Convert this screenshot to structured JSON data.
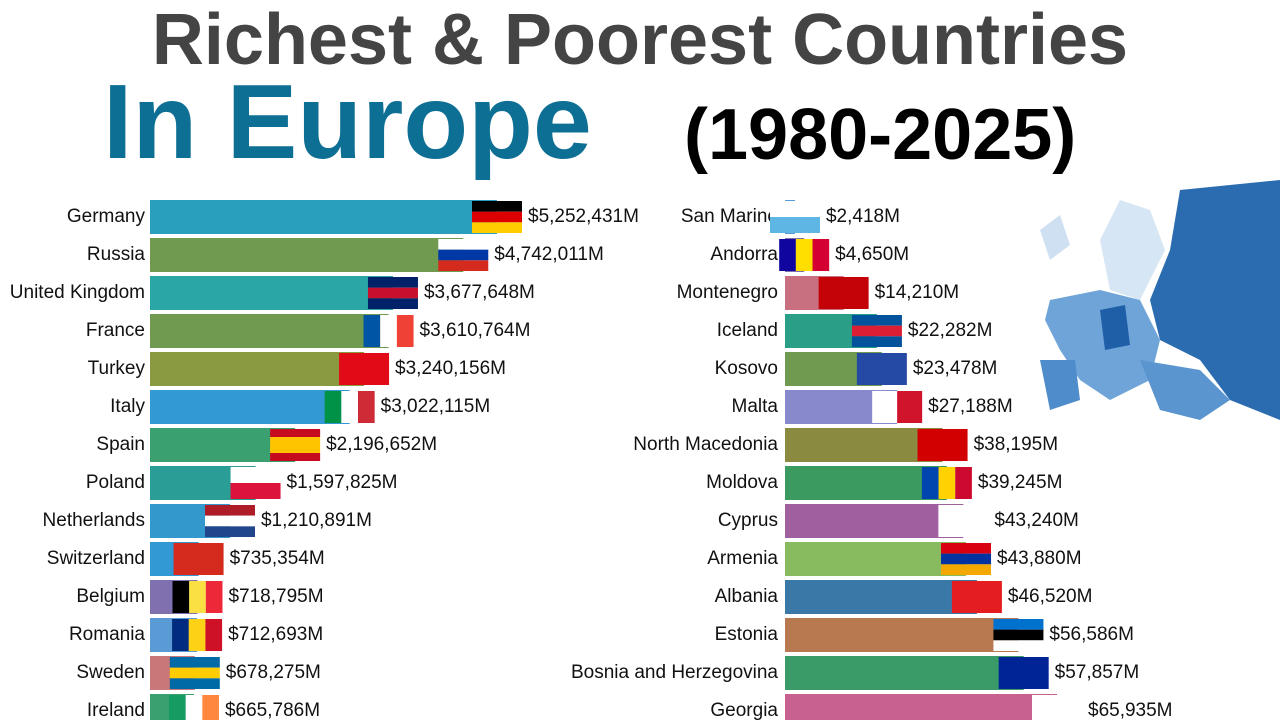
{
  "header": {
    "title": "Richest & Poorest Countries",
    "subtitle": "In Europe",
    "period": "(1980-2025)"
  },
  "chart_data": [
    {
      "type": "bar",
      "categories": [
        "Germany",
        "Russia",
        "United Kingdom",
        "France",
        "Turkey",
        "Italy",
        "Spain",
        "Poland",
        "Netherlands",
        "Switzerland",
        "Belgium",
        "Romania",
        "Sweden",
        "Ireland"
      ],
      "values": [
        5252431,
        4742011,
        3677648,
        3610764,
        3240156,
        3022115,
        2196652,
        1597825,
        1210891,
        735354,
        718795,
        712693,
        678275,
        665786
      ],
      "value_labels": [
        "$5,252,431M",
        "$4,742,011M",
        "$3,677,648M",
        "$3,610,764M",
        "$3,240,156M",
        "$3,022,115M",
        "$2,196,652M",
        "$1,597,825M",
        "$1,210,891M",
        "$735,354M",
        "$718,795M",
        "$712,693M",
        "$678,275M",
        "$665,786M"
      ],
      "colors": [
        "#2a9fbd",
        "#6f9a50",
        "#2aa6a6",
        "#6f9a50",
        "#8a9a40",
        "#3399d4",
        "#3aa070",
        "#2a9e96",
        "#3399cc",
        "#3399d4",
        "#8070b0",
        "#5b9bd5",
        "#c87878",
        "#3aa070"
      ]
    },
    {
      "type": "bar",
      "categories": [
        "San Marino",
        "Andorra",
        "Montenegro",
        "Iceland",
        "Kosovo",
        "Malta",
        "North Macedonia",
        "Moldova",
        "Cyprus",
        "Armenia",
        "Albania",
        "Estonia",
        "Bosnia and Herzegovina",
        "Georgia"
      ],
      "values": [
        2418,
        4650,
        14210,
        22282,
        23478,
        27188,
        38195,
        39245,
        43240,
        43880,
        46520,
        56586,
        57857,
        65935
      ],
      "value_labels": [
        "$2,418M",
        "$4,650M",
        "$14,210M",
        "$22,282M",
        "$23,478M",
        "$27,188M",
        "$38,195M",
        "$39,245M",
        "$43,240M",
        "$43,880M",
        "$46,520M",
        "$56,586M",
        "$57,857M",
        "$65,935M"
      ],
      "colors": [
        "#5b9bd5",
        "#8070b0",
        "#c87080",
        "#2a9e86",
        "#6f9a50",
        "#8888cc",
        "#8a8a40",
        "#3a9a60",
        "#a060a0",
        "#88bb60",
        "#3a78a8",
        "#b87850",
        "#3a9a68",
        "#c86090"
      ]
    }
  ]
}
